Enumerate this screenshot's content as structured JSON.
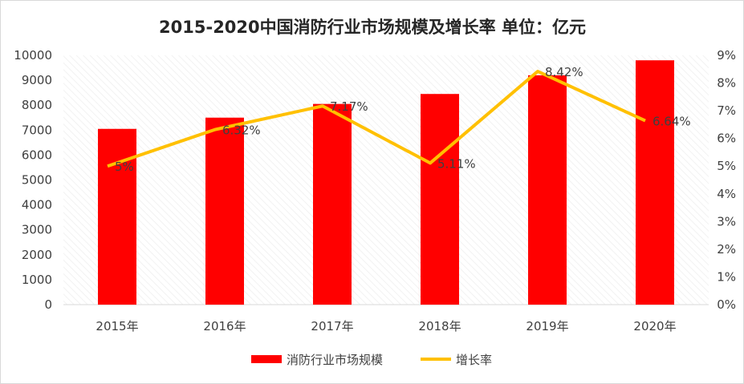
{
  "chart_data": {
    "type": "bar",
    "title": "2015-2020中国消防行业市场规模及增长率 单位：亿元",
    "categories": [
      "2015年",
      "2016年",
      "2017年",
      "2018年",
      "2019年",
      "2020年"
    ],
    "series": [
      {
        "name": "消防行业市场规模",
        "type": "bar",
        "axis": "left",
        "color": "#ff0000",
        "values": [
          7050,
          7500,
          8050,
          8450,
          9200,
          9800
        ]
      },
      {
        "name": "增长率",
        "type": "line",
        "axis": "right",
        "color": "#ffc000",
        "values": [
          5.0,
          6.32,
          7.17,
          5.11,
          8.42,
          6.64
        ],
        "labels": [
          "5%",
          "6.32%",
          "7.17%",
          "5.11%",
          "8.42%",
          "6.64%"
        ]
      }
    ],
    "left_axis": {
      "min": 0,
      "max": 10000,
      "step": 1000,
      "ticks": [
        "0",
        "1000",
        "2000",
        "3000",
        "4000",
        "5000",
        "6000",
        "7000",
        "8000",
        "9000",
        "10000"
      ]
    },
    "right_axis": {
      "min": 0,
      "max": 9,
      "step": 1,
      "ticks": [
        "0%",
        "1%",
        "2%",
        "3%",
        "4%",
        "5%",
        "6%",
        "7%",
        "8%",
        "9%"
      ]
    },
    "legend_position": "bottom",
    "grid": false
  }
}
